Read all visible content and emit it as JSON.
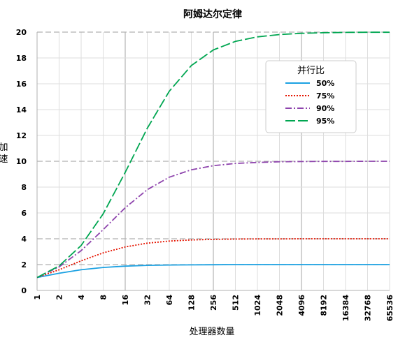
{
  "chart_data": {
    "type": "line",
    "title": "阿姆达尔定律",
    "xlabel": "处理器数量",
    "ylabel": "加速",
    "x_scale": "log2",
    "x": [
      1,
      2,
      4,
      8,
      16,
      32,
      64,
      128,
      256,
      512,
      1024,
      2048,
      4096,
      8192,
      16384,
      32768,
      65536
    ],
    "x_tick_labels": [
      "1",
      "2",
      "4",
      "8",
      "16",
      "32",
      "64",
      "128",
      "256",
      "512",
      "1024",
      "2048",
      "4096",
      "8192",
      "16384",
      "32768",
      "65536"
    ],
    "ylim": [
      0,
      20
    ],
    "y_ticks": [
      0,
      2,
      4,
      6,
      8,
      10,
      12,
      14,
      16,
      18,
      20
    ],
    "grid": true,
    "legend": {
      "title": "并行比",
      "placement": "upper-right"
    },
    "series": [
      {
        "name": "50%",
        "color": "#1ba1e2",
        "dash": "solid",
        "values": [
          1.0,
          1.33,
          1.6,
          1.78,
          1.88,
          1.94,
          1.97,
          1.98,
          1.99,
          2.0,
          2.0,
          2.0,
          2.0,
          2.0,
          2.0,
          2.0,
          2.0
        ]
      },
      {
        "name": "75%",
        "color": "#e51400",
        "dash": "dotted",
        "values": [
          1.0,
          1.6,
          2.29,
          2.91,
          3.37,
          3.66,
          3.82,
          3.91,
          3.95,
          3.98,
          3.99,
          3.99,
          4.0,
          4.0,
          4.0,
          4.0,
          4.0
        ]
      },
      {
        "name": "90%",
        "color": "#8e44ad",
        "dash": "dashdot",
        "values": [
          1.0,
          1.82,
          3.08,
          4.71,
          6.4,
          7.8,
          8.77,
          9.34,
          9.66,
          9.83,
          9.91,
          9.96,
          9.98,
          9.99,
          9.99,
          10.0,
          10.0
        ]
      },
      {
        "name": "95%",
        "color": "#00a651",
        "dash": "longdash",
        "values": [
          1.0,
          1.9,
          3.48,
          5.93,
          9.14,
          12.55,
          15.42,
          17.41,
          18.62,
          19.28,
          19.63,
          19.81,
          19.91,
          19.95,
          19.98,
          19.99,
          19.99
        ]
      }
    ]
  }
}
